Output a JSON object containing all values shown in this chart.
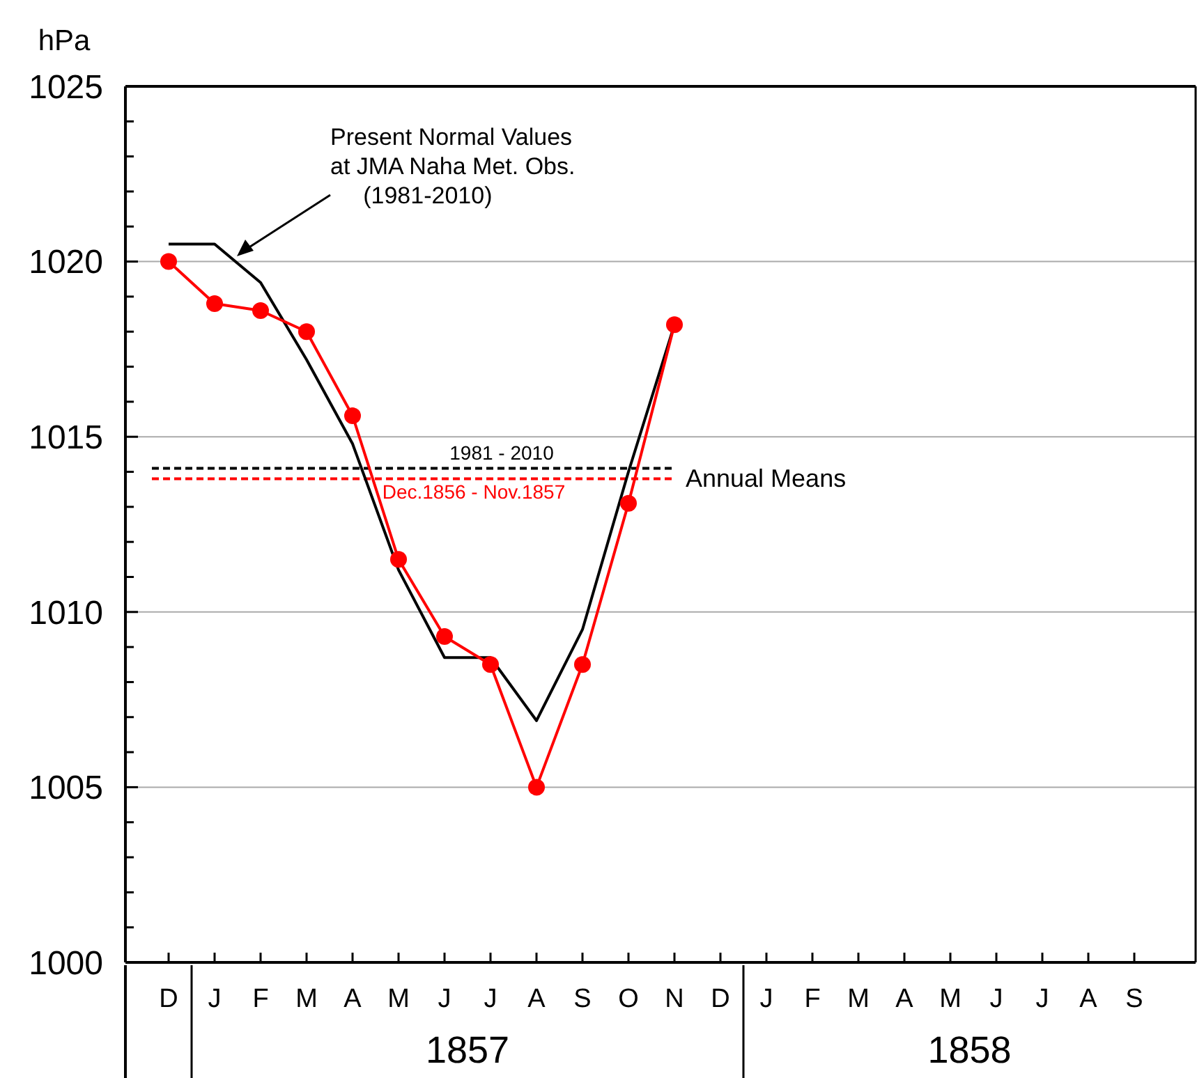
{
  "chart_data": {
    "type": "line",
    "ylabel": "hPa",
    "categories": [
      "D",
      "J",
      "F",
      "M",
      "A",
      "M",
      "J",
      "J",
      "A",
      "S",
      "O",
      "N",
      "D",
      "J",
      "F",
      "M",
      "A",
      "M",
      "J",
      "J",
      "A",
      "S"
    ],
    "series": [
      {
        "color": "#000000",
        "marker": "none",
        "values": [
          1020.5,
          1020.5,
          1019.4,
          1017.2,
          1014.8,
          1011.2,
          1008.7,
          1008.7,
          1006.9,
          1009.5,
          1014.0,
          1018.2,
          null,
          null,
          null,
          null,
          null,
          null,
          null,
          null,
          null,
          null
        ]
      },
      {
        "color": "#ff0000",
        "marker": "circle",
        "values": [
          1020.0,
          1018.8,
          1018.6,
          1018.0,
          1015.6,
          1011.5,
          1009.3,
          1008.5,
          1005.0,
          1008.5,
          1013.1,
          1018.2,
          null,
          null,
          null,
          null,
          null,
          null,
          null,
          null,
          null,
          null
        ]
      }
    ],
    "ylim": [
      1000,
      1025
    ],
    "yticks": [
      1000,
      {
        "value": 1001,
        "label": null
      },
      {
        "value": 1002,
        "label": null
      },
      {
        "value": 1003,
        "label": null
      },
      {
        "value": 1004,
        "label": null
      },
      1005,
      {
        "value": 1006,
        "label": null
      },
      {
        "value": 1007,
        "label": null
      },
      {
        "value": 1008,
        "label": null
      },
      {
        "value": 1009,
        "label": null
      },
      1010,
      {
        "value": 1011,
        "label": null
      },
      {
        "value": 1012,
        "label": null
      },
      {
        "value": 1013,
        "label": null
      },
      {
        "value": 1014,
        "label": null
      },
      1015,
      {
        "value": 1016,
        "label": null
      },
      {
        "value": 1017,
        "label": null
      },
      {
        "value": 1018,
        "label": null
      },
      {
        "value": 1019,
        "label": null
      },
      1020,
      {
        "value": 1021,
        "label": null
      },
      {
        "value": 1022,
        "label": null
      },
      {
        "value": 1023,
        "label": null
      },
      {
        "value": 1024,
        "label": null
      },
      1025
    ],
    "grid": "y",
    "legend": false,
    "ref_lines": [
      {
        "axis": "y",
        "value": 1014.1,
        "color": "#000000",
        "line_style": "dashed"
      },
      {
        "axis": "y",
        "value": 1013.8,
        "color": "#ff0000",
        "line_style": "dashed"
      }
    ],
    "annotations": [
      "Present Normal Values\nat JMA Naha Met. Obs.\n     (1981-2010)",
      "Annual Means",
      "1857",
      "1858",
      "1981 - 2010",
      "Dec.1856 - Nov.1857"
    ]
  }
}
